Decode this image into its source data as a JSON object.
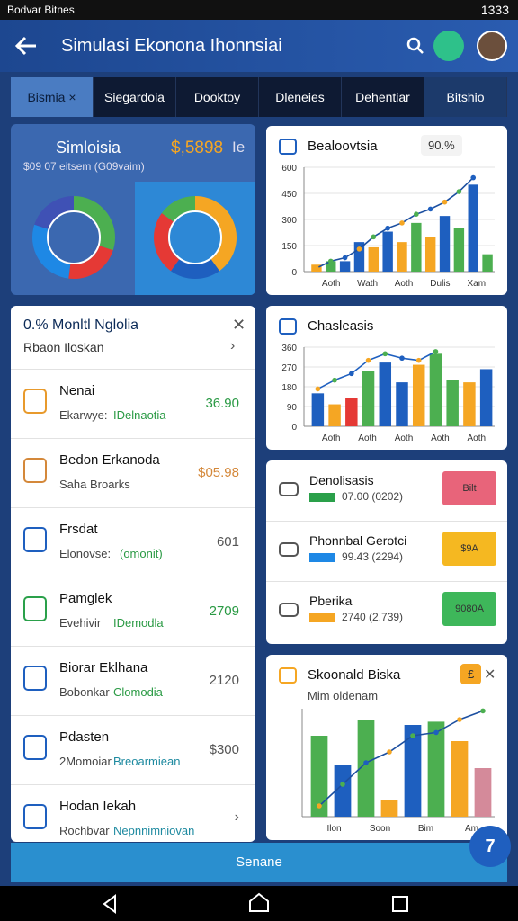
{
  "status_bar": {
    "left": "Bodvar Bitnes",
    "time": "1333"
  },
  "app_bar": {
    "title": "Simulasi Ekonona Ihonnsiai"
  },
  "tabs": [
    "Bismia ×",
    "Siegardoia",
    "Dooktoy",
    "Dleneies",
    "Dehentiar",
    "Bitshio"
  ],
  "summary_card": {
    "title": "Simloisia",
    "value": "$,5898",
    "badge": "Ie",
    "subtitle": "$09 07 eitsem (G09vaim)",
    "donuts": [
      {
        "values": [
          30,
          22,
          28,
          20
        ],
        "colors": [
          "#4caf50",
          "#e53935",
          "#1e88e5",
          "#3f51b5"
        ]
      },
      {
        "values": [
          40,
          20,
          25,
          15
        ],
        "colors": [
          "#f5a623",
          "#1e5fbf",
          "#e53935",
          "#4caf50"
        ]
      }
    ]
  },
  "charts": [
    {
      "title": "Bealoovtsia",
      "badge": "90.%",
      "ylim": [
        0,
        600
      ],
      "yticks": [
        0,
        150,
        300,
        450,
        600
      ],
      "categories": [
        "Aoth",
        "Wath",
        "Aoth",
        "Dulis",
        "Xam"
      ],
      "values": [
        40,
        60,
        60,
        170,
        140,
        230,
        170,
        280,
        200,
        320,
        250,
        500,
        100
      ],
      "colors": [
        "#f5a623",
        "#4caf50",
        "#1e5fbf",
        "#1e5fbf",
        "#f5a623",
        "#1e5fbf",
        "#f5a623",
        "#4caf50",
        "#f5a623",
        "#1e5fbf",
        "#4caf50",
        "#1e5fbf",
        "#4caf50"
      ],
      "line": [
        20,
        60,
        80,
        130,
        200,
        250,
        280,
        330,
        360,
        400,
        460,
        540,
        null
      ]
    },
    {
      "title": "Chasleasis",
      "ylim": [
        0,
        360
      ],
      "yticks": [
        0,
        90,
        180,
        270,
        360
      ],
      "categories": [
        "Aoth",
        "Aoth",
        "Aoth",
        "Aoth",
        "Aoth"
      ],
      "values": [
        150,
        100,
        130,
        250,
        290,
        200,
        280,
        330,
        210,
        200,
        260
      ],
      "colors": [
        "#1e5fbf",
        "#f5a623",
        "#e53935",
        "#4caf50",
        "#1e5fbf",
        "#1e5fbf",
        "#f5a623",
        "#4caf50",
        "#4caf50",
        "#f5a623",
        "#1e5fbf"
      ],
      "line": [
        170,
        210,
        240,
        300,
        330,
        310,
        300,
        340,
        null,
        null,
        null
      ]
    },
    {
      "title": "Skoonald Biska",
      "subtitle": "Mim oldenam",
      "badge": "₤",
      "ylim": [
        0,
        100
      ],
      "categories": [
        "Ilon",
        "Soon",
        "Bim",
        "Am"
      ],
      "values": [
        75,
        48,
        90,
        15,
        85,
        88,
        70,
        45
      ],
      "colors": [
        "#4caf50",
        "#1e5fbf",
        "#4caf50",
        "#f5a623",
        "#1e5fbf",
        "#4caf50",
        "#f5a623",
        "#d48a9a"
      ],
      "line": [
        10,
        30,
        50,
        60,
        75,
        78,
        90,
        98
      ]
    }
  ],
  "list": {
    "title": "0.% Monltl Nglolia",
    "subtitle": "Rbaon Iloskan",
    "items": [
      {
        "name": "Nenai",
        "label": "Ekarwye:",
        "tag": "IDelnaotia",
        "value": "36.90"
      },
      {
        "name": "Bedon Erkanoda",
        "label": "Saha Broarks",
        "value": "$05.98"
      },
      {
        "name": "Frsdat",
        "label": "Elonovse:",
        "tag": "(omonit)",
        "value": "601"
      },
      {
        "name": "Pamglek",
        "label": "Evehivir",
        "tag": "IDemodla",
        "value": "2709"
      },
      {
        "name": "Biorar Eklhana",
        "label": "Bobonkar",
        "tag": "Clomodia",
        "value": "2120"
      },
      {
        "name": "Pdasten",
        "label": "2Momoiar",
        "tag": "Breoarmiean",
        "value": "$300"
      },
      {
        "name": "Hodan Iekah",
        "label": "Rochbvar",
        "tag": "Nepnnimniovan"
      }
    ]
  },
  "rates": [
    {
      "name": "Denolisasis",
      "detail": "07.00 (0202)",
      "button": "Bilt"
    },
    {
      "name": "Phonnbal Gerotci",
      "detail": "99.43 (2294)",
      "button": "$9A"
    },
    {
      "name": "Pberika",
      "detail": "2740 (2.739)",
      "button": "9080A"
    }
  ],
  "bottom_button": "Senane",
  "fab": "7"
}
